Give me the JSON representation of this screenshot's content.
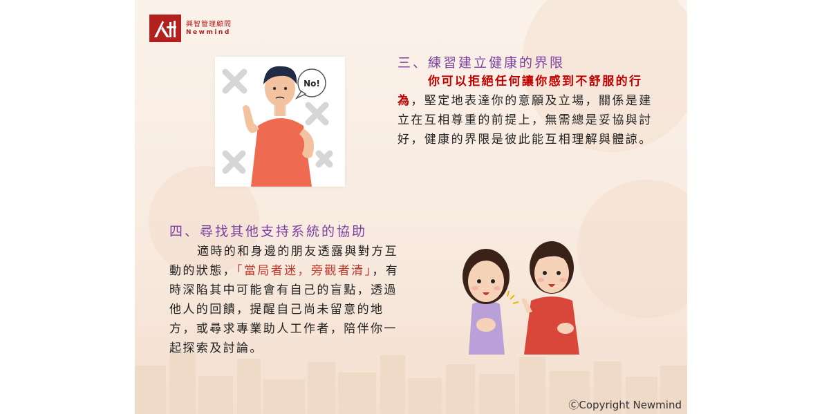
{
  "logo": {
    "name_cn": "興智管理顧問",
    "name_en": "Newmind",
    "color": "#b32020"
  },
  "section3": {
    "heading": "三、練習建立健康的界限",
    "emphasis": "你可以拒絕任何讓你感到不舒服的行為",
    "body": "，堅定地表達你的意願及立場，關係是建立在互相尊重的前提上，無需總是妥協與討好，健康的界限是彼此能互相理解與體諒。",
    "image": {
      "icon": "man-refusing-illustration",
      "bubble_text": "No!"
    }
  },
  "section4": {
    "heading": "四、尋找其他支持系統的協助",
    "body_before": "適時的和身邊的朋友透露與對方互動的狀態，",
    "quote": "「當局者迷，旁觀者清」",
    "body_after": "，有時深陷其中可能會有自己的盲點，透過他人的回饋，提醒自己尚未留意的地方，或尋求專業助人工作者，陪伴你一起探索及討論。",
    "image": {
      "icon": "two-friends-talking-illustration"
    }
  },
  "footer": {
    "copyright": "ⒸCopyright Newmind"
  },
  "colors": {
    "heading": "#7a3f9e",
    "emphasis": "#c00000",
    "quote": "#c0392b",
    "background": "#f8eadf"
  }
}
